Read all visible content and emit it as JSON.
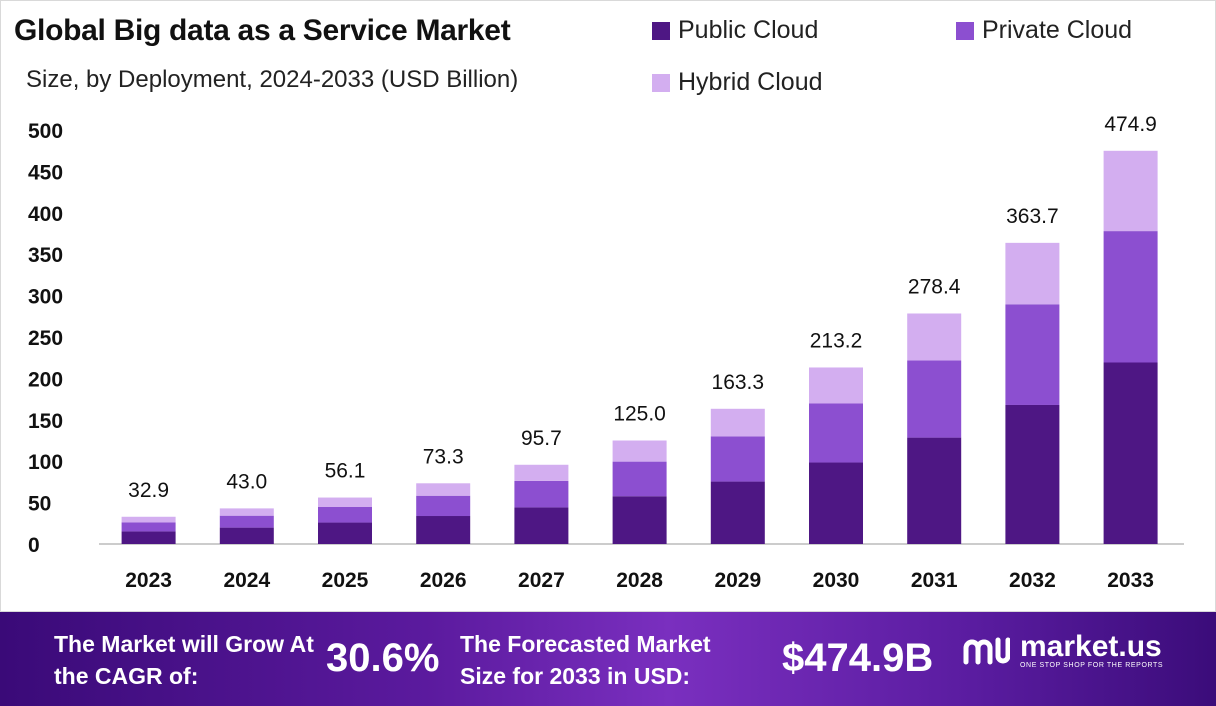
{
  "colors": {
    "public": "#4e1784",
    "private": "#8c4fd0",
    "hybrid": "#d3aef0",
    "axis": "#9a9a9a",
    "text": "#111111"
  },
  "legend": [
    {
      "label": "Public Cloud",
      "color": "#4e1784"
    },
    {
      "label": "Private Cloud",
      "color": "#8c4fd0"
    },
    {
      "label": "Hybrid Cloud",
      "color": "#d3aef0"
    }
  ],
  "footer": {
    "cagr_label": "The Market will Grow At the CAGR of:",
    "cagr_value": "30.6%",
    "forecast_label": "The Forecasted Market Size for 2033 in USD:",
    "forecast_value": "$474.9B",
    "brand": "market.us",
    "tagline": "ONE STOP SHOP FOR THE REPORTS"
  },
  "chart_data": {
    "type": "bar",
    "stacked": true,
    "title": "Global Big data as a Service Market",
    "subtitle": "Size, by Deployment, 2024-2033 (USD Billion)",
    "xlabel": "",
    "ylabel": "",
    "ylim": [
      0,
      500
    ],
    "yticks": [
      0,
      50,
      100,
      150,
      200,
      250,
      300,
      350,
      400,
      450,
      500
    ],
    "categories": [
      "2023",
      "2024",
      "2025",
      "2026",
      "2027",
      "2028",
      "2029",
      "2030",
      "2031",
      "2032",
      "2033"
    ],
    "totals": [
      "32.9",
      "43.0",
      "56.1",
      "73.3",
      "95.7",
      "125.0",
      "163.3",
      "213.2",
      "278.4",
      "363.7",
      "474.9"
    ],
    "series": [
      {
        "name": "Public Cloud",
        "values": [
          15.2,
          19.8,
          25.9,
          33.8,
          44.2,
          57.7,
          75.4,
          98.4,
          128.5,
          167.9,
          219.2
        ]
      },
      {
        "name": "Private Cloud",
        "values": [
          11.0,
          14.4,
          18.8,
          24.5,
          32.0,
          41.8,
          54.6,
          71.3,
          93.1,
          121.6,
          158.7
        ]
      },
      {
        "name": "Hybrid Cloud",
        "values": [
          6.7,
          8.8,
          11.4,
          15.0,
          19.5,
          25.5,
          33.3,
          43.5,
          56.8,
          74.2,
          97.0
        ]
      }
    ],
    "legend_position": "top-right",
    "grid": false
  }
}
